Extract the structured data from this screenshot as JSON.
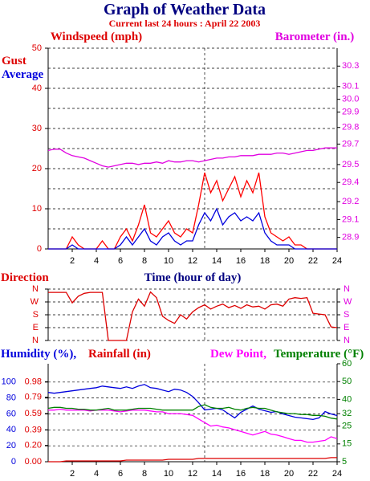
{
  "chart_data": [
    {
      "type": "line",
      "title": "Graph of Weather Data",
      "subtitle": "Current last 24 hours : April 22 2003",
      "ylabel": "Windspeed (mph)",
      "xlabel": "Time (hour of day)",
      "x": [
        0,
        0.5,
        1,
        1.5,
        2,
        2.5,
        3,
        3.5,
        4,
        4.5,
        5,
        5.5,
        6,
        6.5,
        7,
        7.5,
        8,
        8.5,
        9,
        9.5,
        10,
        10.5,
        11,
        11.5,
        12,
        12.5,
        13,
        13.5,
        14,
        14.5,
        15,
        15.5,
        16,
        16.5,
        17,
        17.5,
        18,
        18.5,
        19,
        19.5,
        20,
        20.5,
        21,
        21.5,
        22,
        22.5,
        23,
        23.5,
        24
      ],
      "xlim": [
        0,
        24
      ],
      "xticks": [
        2,
        4,
        6,
        8,
        10,
        12,
        14,
        16,
        18,
        20,
        22,
        24
      ],
      "ylim": [
        0,
        50
      ],
      "yticks": [
        0,
        10,
        20,
        30,
        40,
        50
      ],
      "minor_yticks": [
        5,
        15,
        25,
        35,
        45
      ],
      "ycolor": "#e00000",
      "y2lim": [
        28.83,
        30.4
      ],
      "y2color": "#e000e0",
      "y2ticks": [
        {
          "value": 28.92,
          "label": "28.9"
        },
        {
          "value": 29.06,
          "label": "29.1"
        },
        {
          "value": 29.2,
          "label": "29.2"
        },
        {
          "value": 29.35,
          "label": "29.4"
        },
        {
          "value": 29.49,
          "label": "29.5"
        },
        {
          "value": 29.65,
          "label": "29.7"
        },
        {
          "value": 29.78,
          "label": "29.8"
        },
        {
          "value": 29.9,
          "label": "29.9"
        },
        {
          "value": 30.0,
          "label": "30.0"
        },
        {
          "value": 30.1,
          "label": "30.1"
        },
        {
          "value": 30.26,
          "label": "30.3"
        }
      ],
      "grid": true,
      "vline": 13,
      "series": [
        {
          "name": "Gust",
          "color": "#ff0000",
          "values": [
            0,
            0,
            0,
            0,
            3,
            1,
            0,
            0,
            0,
            2,
            0,
            0,
            3,
            5,
            2,
            6,
            11,
            4,
            3,
            5,
            7,
            4,
            3,
            5,
            4,
            11,
            19,
            14,
            17,
            12,
            15,
            18,
            13,
            17,
            14,
            19,
            8,
            4,
            3,
            2,
            3,
            1,
            1,
            0,
            0,
            0,
            0,
            0,
            0
          ]
        },
        {
          "name": "Average",
          "color": "#0000dd",
          "values": [
            0,
            0,
            0,
            0,
            1,
            0,
            0,
            0,
            0,
            0,
            0,
            0,
            1,
            3,
            1,
            3,
            5,
            2,
            1,
            3,
            4,
            2,
            1,
            2,
            2,
            6,
            9,
            7,
            10,
            6,
            8,
            9,
            7,
            8,
            7,
            9,
            4,
            2,
            1,
            1,
            1,
            0,
            0,
            0,
            0,
            0,
            0,
            0,
            0
          ]
        },
        {
          "name": "Barometer (in.)",
          "color": "#e000e0",
          "axis": "y2",
          "values": [
            29.6,
            29.61,
            29.61,
            29.58,
            29.56,
            29.55,
            29.54,
            29.52,
            29.5,
            29.48,
            29.47,
            29.48,
            29.49,
            29.5,
            29.5,
            29.49,
            29.5,
            29.5,
            29.51,
            29.5,
            29.52,
            29.51,
            29.51,
            29.52,
            29.52,
            29.51,
            29.52,
            29.53,
            29.54,
            29.54,
            29.55,
            29.55,
            29.56,
            29.56,
            29.56,
            29.57,
            29.57,
            29.57,
            29.58,
            29.58,
            29.57,
            29.58,
            29.59,
            29.6,
            29.6,
            29.61,
            29.62,
            29.62,
            29.62
          ]
        }
      ]
    },
    {
      "type": "line",
      "title": "Direction",
      "x": [
        0,
        0.5,
        1,
        1.5,
        2,
        2.5,
        3,
        3.5,
        4,
        4.5,
        5,
        5.5,
        6,
        6.5,
        7,
        7.5,
        8,
        8.5,
        9,
        9.5,
        10,
        10.5,
        11,
        11.5,
        12,
        12.5,
        13,
        13.5,
        14,
        14.5,
        15,
        15.5,
        16,
        16.5,
        17,
        17.5,
        18,
        18.5,
        19,
        19.5,
        20,
        20.5,
        21,
        21.5,
        22,
        22.5,
        23,
        23.5,
        24
      ],
      "xlim": [
        0,
        24
      ],
      "ylim": [
        0,
        360
      ],
      "ycolor": "#e00000",
      "y2lim": [
        0,
        360
      ],
      "y2color": "#e000e0",
      "yticks": [
        {
          "value": 0,
          "label": "N"
        },
        {
          "value": 90,
          "label": "E"
        },
        {
          "value": 180,
          "label": "S"
        },
        {
          "value": 270,
          "label": "W"
        },
        {
          "value": 360,
          "label": "N"
        }
      ],
      "y2ticks": [
        {
          "value": 0,
          "label": "N"
        },
        {
          "value": 90,
          "label": "E"
        },
        {
          "value": 180,
          "label": "S"
        },
        {
          "value": 270,
          "label": "W"
        },
        {
          "value": 360,
          "label": "N"
        }
      ],
      "grid": true,
      "vline": 13,
      "color": "#dd0000",
      "values": [
        337,
        337,
        337,
        337,
        264,
        310,
        330,
        337,
        337,
        337,
        0,
        0,
        0,
        0,
        200,
        290,
        240,
        340,
        300,
        170,
        140,
        120,
        180,
        150,
        200,
        230,
        250,
        220,
        240,
        255,
        230,
        245,
        225,
        250,
        235,
        240,
        220,
        250,
        255,
        240,
        290,
        300,
        295,
        300,
        190,
        185,
        180,
        95,
        90
      ]
    },
    {
      "type": "line",
      "x": [
        0,
        0.5,
        1,
        1.5,
        2,
        2.5,
        3,
        3.5,
        4,
        4.5,
        5,
        5.5,
        6,
        6.5,
        7,
        7.5,
        8,
        8.5,
        9,
        9.5,
        10,
        10.5,
        11,
        11.5,
        12,
        12.5,
        13,
        13.5,
        14,
        14.5,
        15,
        15.5,
        16,
        16.5,
        17,
        17.5,
        18,
        18.5,
        19,
        19.5,
        20,
        20.5,
        21,
        21.5,
        22,
        22.5,
        23,
        23.5,
        24
      ],
      "xlim": [
        0,
        24
      ],
      "xticks": [
        2,
        4,
        6,
        8,
        10,
        12,
        14,
        16,
        18,
        20,
        22,
        24
      ],
      "ylim": [
        0,
        123
      ],
      "yticks": [
        0,
        20,
        40,
        60,
        80,
        100
      ],
      "ycolor": "#0000dd",
      "y3lim": [
        0,
        1.2
      ],
      "y3color": "#e00000",
      "y3ticks": [
        {
          "value": 0,
          "label": "0.00"
        },
        {
          "value": 0.2,
          "label": "0.20"
        },
        0.39,
        0.59,
        0.79,
        0.98
      ],
      "y2lim": [
        5,
        60
      ],
      "y2ticks": [
        5,
        15,
        25,
        32,
        40,
        50,
        60
      ],
      "y2color": "#008000",
      "grid": true,
      "vline": 13,
      "series": [
        {
          "name": "Humidity (%),",
          "color": "#0000dd",
          "values": [
            87,
            86,
            87,
            88,
            89,
            90,
            91,
            92,
            93,
            95,
            94,
            93,
            92,
            94,
            92,
            95,
            97,
            93,
            92,
            90,
            88,
            91,
            90,
            87,
            82,
            74,
            65,
            66,
            67,
            65,
            60,
            55,
            62,
            66,
            70,
            66,
            64,
            62,
            63,
            60,
            58,
            56,
            55,
            54,
            53,
            55,
            63,
            60,
            58
          ]
        },
        {
          "name": "Rainfall (in)",
          "color": "#dd0000",
          "axis": "y3",
          "values": [
            0,
            0,
            0,
            0.01,
            0.01,
            0.01,
            0.01,
            0.01,
            0.01,
            0.01,
            0.01,
            0.01,
            0.01,
            0.02,
            0.02,
            0.02,
            0.02,
            0.02,
            0.02,
            0.02,
            0.03,
            0.03,
            0.03,
            0.03,
            0.03,
            0.04,
            0.04,
            0.04,
            0.04,
            0.04,
            0.04,
            0.04,
            0.04,
            0.04,
            0.04,
            0.04,
            0.04,
            0.04,
            0.04,
            0.04,
            0.04,
            0.04,
            0.04,
            0.04,
            0.04,
            0.04,
            0.04,
            0.05,
            0.05
          ]
        },
        {
          "name": "Dew Point,",
          "color": "#ff00ff",
          "axis": "y2",
          "values": [
            34,
            34,
            34.5,
            34,
            34,
            34,
            34,
            33.5,
            34,
            34,
            34,
            33.5,
            33,
            33.5,
            34,
            34,
            34,
            33.5,
            33,
            33,
            32,
            32,
            32,
            31.5,
            31,
            29,
            27,
            25,
            25.5,
            24.5,
            24,
            23,
            22,
            21,
            20,
            21,
            22,
            20.5,
            20,
            19,
            18,
            17,
            17,
            16,
            16,
            16.5,
            17,
            19,
            18
          ]
        },
        {
          "name": "Temperature (°F)",
          "color": "#008000",
          "axis": "y2",
          "values": [
            35,
            35.5,
            35.5,
            35,
            35,
            34.5,
            34.5,
            34,
            34,
            34.5,
            35,
            34,
            34,
            34,
            34.5,
            35,
            35,
            35,
            34.5,
            34,
            34,
            34,
            34,
            34,
            34,
            36,
            37,
            35.5,
            35,
            35,
            35.5,
            34.5,
            34,
            35,
            35.5,
            35,
            35,
            34,
            33,
            32.5,
            32,
            32,
            31.5,
            31.5,
            31,
            31,
            30.5,
            29.5,
            29
          ]
        }
      ]
    }
  ]
}
